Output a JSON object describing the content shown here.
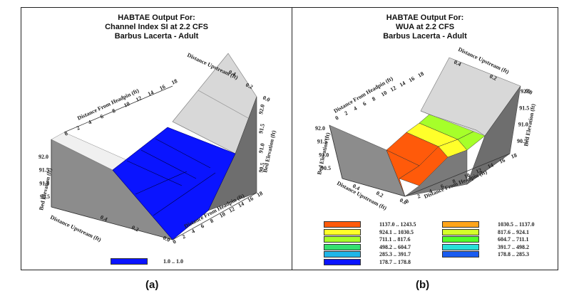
{
  "panel_a": {
    "title_line1": "HABTAE Output For:",
    "title_line2": "Channel Index SI at    2.2 CFS",
    "title_line3": "Barbus Lacerta - Adult",
    "axis_distance_upstream": "Distance Upstream (ft)",
    "axis_distance_headpin": "Distance From Headpin (ft)",
    "axis_bed_elevation": "Bed Elevation (ft)",
    "headpin_ticks": [
      "0",
      "2",
      "4",
      "6",
      "8",
      "10",
      "12",
      "14",
      "16",
      "18"
    ],
    "upstream_ticks": [
      "0.0",
      "0.2",
      "0.4"
    ],
    "elevation_ticks": [
      "92.0",
      "91.5",
      "91.0",
      "90.5"
    ],
    "legend": [
      {
        "label": "1.0 .. 1.0",
        "color": "#0a14ff"
      }
    ],
    "caption": "(a)"
  },
  "panel_b": {
    "title_line1": "HABTAE Output For:",
    "title_line2": "WUA at    2.2 CFS",
    "title_line3": "Barbus Lacerta - Adult",
    "axis_distance_upstream": "Distance Upstream (ft)",
    "axis_distance_headpin": "Distance From Headpin (ft)",
    "axis_bed_elevation": "Bed Elevation (ft)",
    "headpin_ticks": [
      "0",
      "2",
      "4",
      "6",
      "8",
      "10",
      "12",
      "14",
      "16",
      "18"
    ],
    "upstream_ticks": [
      "0.0",
      "0.2",
      "0.4"
    ],
    "elevation_ticks": [
      "92.0",
      "91.5",
      "91.0",
      "90.5"
    ],
    "legend_left": [
      {
        "label": "1137.0 ..  1243.5",
        "color": "#ff5a0a"
      },
      {
        "label": "924.1 ..  1030.5",
        "color": "#ffff2a"
      },
      {
        "label": "711.1 ..   817.6",
        "color": "#a6ff2a"
      },
      {
        "label": "498.2 ..   604.7",
        "color": "#35e070"
      },
      {
        "label": "285.3 ..   391.7",
        "color": "#20b6e8"
      },
      {
        "label": "178.7 ..   178.8",
        "color": "#0a14ff"
      }
    ],
    "legend_right": [
      {
        "label": "1030.5 ..  1137.0",
        "color": "#ffa51a"
      },
      {
        "label": "817.6 ..   924.1",
        "color": "#d4ff2a"
      },
      {
        "label": "604.7 ..   711.1",
        "color": "#52ff2a"
      },
      {
        "label": "391.7 ..   498.2",
        "color": "#28e0d8"
      },
      {
        "label": "178.8 ..   285.3",
        "color": "#1a5cf0"
      }
    ],
    "caption": "(b)"
  },
  "colors": {
    "wall_left": "#8c8c8c",
    "wall_right": "#6e6e6e",
    "upstream_wall": "#d8d8d8",
    "floor_plain": "#e6e6e6"
  }
}
